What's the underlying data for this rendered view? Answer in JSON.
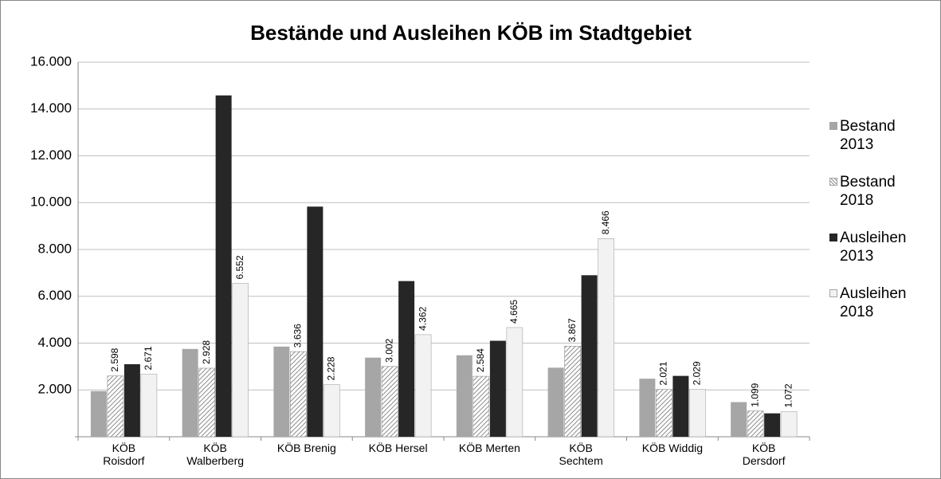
{
  "chart_data": {
    "type": "bar",
    "title": "Bestände und Ausleihen KÖB im Stadtgebiet",
    "categories": [
      "KÖB Roisdorf",
      "KÖB Walberberg",
      "KÖB Brenig",
      "KÖB Hersel",
      "KÖB Merten",
      "KÖB Sechtem",
      "KÖB Widdig",
      "KÖB Dersdorf"
    ],
    "series": [
      {
        "name": "Bestand 2013",
        "color": "#a6a6a6",
        "values": [
          1950,
          3750,
          3850,
          3380,
          3480,
          2950,
          2480,
          1480
        ]
      },
      {
        "name": "Bestand 2018",
        "color": "#8c8c8c",
        "hatch": true,
        "values": [
          2598,
          2928,
          3636,
          3002,
          2584,
          3867,
          2021,
          1099
        ],
        "value_labels": [
          "2.598",
          "2.928",
          "3.636",
          "3.002",
          "2.584",
          "3.867",
          "2.021",
          "1.099"
        ]
      },
      {
        "name": "Ausleihen 2013",
        "color": "#262626",
        "values": [
          3100,
          14580,
          9830,
          6650,
          4100,
          6900,
          2600,
          1000
        ]
      },
      {
        "name": "Ausleihen 2018",
        "color": "#f2f2f2",
        "values": [
          2671,
          6552,
          2228,
          4362,
          4665,
          8466,
          2029,
          1072
        ],
        "value_labels": [
          "2.671",
          "6.552",
          "2.228",
          "4.362",
          "4.665",
          "8.466",
          "2.029",
          "1.072"
        ]
      }
    ],
    "ylim": [
      0,
      16000
    ],
    "yticks": [
      {
        "value": 2000,
        "label": "2.000"
      },
      {
        "value": 4000,
        "label": "4.000"
      },
      {
        "value": 6000,
        "label": "6.000"
      },
      {
        "value": 8000,
        "label": "8.000"
      },
      {
        "value": 10000,
        "label": "10.000"
      },
      {
        "value": 12000,
        "label": "12.000"
      },
      {
        "value": 14000,
        "label": "14.000"
      },
      {
        "value": 16000,
        "label": "16.000"
      }
    ],
    "grid": true,
    "legend": "right"
  }
}
